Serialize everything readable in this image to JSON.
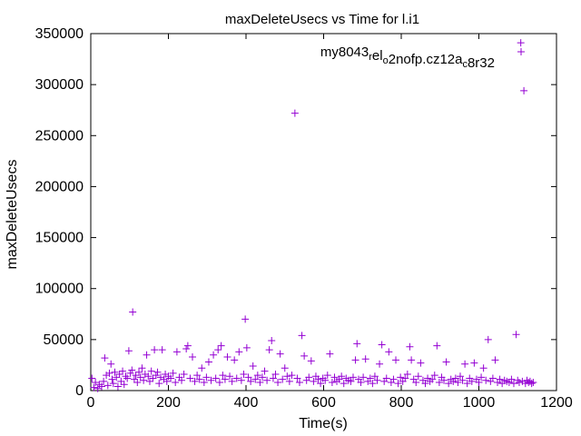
{
  "chart_data": {
    "type": "scatter",
    "title": "maxDeleteUsecs vs Time for l.i1",
    "xlabel": "Time(s)",
    "ylabel": "maxDeleteUsecs",
    "xlim": [
      0,
      1200
    ],
    "ylim": [
      0,
      350000
    ],
    "x_ticks": [
      "0",
      "200",
      "400",
      "600",
      "800",
      "1000",
      "1200"
    ],
    "y_ticks": [
      "0",
      "50000",
      "100000",
      "150000",
      "200000",
      "250000",
      "300000",
      "350000"
    ],
    "grid": false,
    "legend": "top-right",
    "marker": "+",
    "color": "#9400d3",
    "series": [
      {
        "name": "my8043_rel_o2nofp.cz12a_c8r32",
        "points": [
          [
            3,
            12000
          ],
          [
            8,
            3000
          ],
          [
            12,
            8000
          ],
          [
            18,
            2000
          ],
          [
            22,
            6000
          ],
          [
            28,
            4000
          ],
          [
            33,
            9000
          ],
          [
            36,
            32000
          ],
          [
            40,
            15000
          ],
          [
            44,
            5000
          ],
          [
            48,
            17000
          ],
          [
            52,
            26000
          ],
          [
            55,
            11000
          ],
          [
            58,
            7000
          ],
          [
            62,
            18000
          ],
          [
            66,
            13000
          ],
          [
            70,
            4000
          ],
          [
            74,
            16000
          ],
          [
            78,
            9000
          ],
          [
            82,
            19000
          ],
          [
            86,
            6000
          ],
          [
            90,
            14000
          ],
          [
            94,
            12000
          ],
          [
            98,
            39000
          ],
          [
            102,
            17000
          ],
          [
            106,
            20000
          ],
          [
            108,
            77000
          ],
          [
            112,
            11000
          ],
          [
            116,
            15000
          ],
          [
            120,
            8000
          ],
          [
            124,
            18000
          ],
          [
            128,
            13000
          ],
          [
            132,
            22000
          ],
          [
            136,
            10000
          ],
          [
            140,
            16000
          ],
          [
            144,
            35000
          ],
          [
            148,
            14000
          ],
          [
            152,
            9000
          ],
          [
            156,
            19000
          ],
          [
            160,
            12000
          ],
          [
            164,
            40000
          ],
          [
            168,
            15000
          ],
          [
            172,
            18000
          ],
          [
            176,
            7000
          ],
          [
            180,
            13000
          ],
          [
            184,
            40000
          ],
          [
            188,
            11000
          ],
          [
            192,
            16000
          ],
          [
            196,
            9000
          ],
          [
            200,
            14000
          ],
          [
            206,
            12000
          ],
          [
            212,
            17000
          ],
          [
            218,
            8000
          ],
          [
            222,
            38000
          ],
          [
            228,
            13000
          ],
          [
            234,
            10000
          ],
          [
            240,
            16000
          ],
          [
            246,
            41000
          ],
          [
            250,
            44000
          ],
          [
            256,
            12000
          ],
          [
            262,
            33000
          ],
          [
            268,
            9000
          ],
          [
            274,
            15000
          ],
          [
            280,
            11000
          ],
          [
            286,
            22000
          ],
          [
            292,
            8000
          ],
          [
            298,
            13000
          ],
          [
            304,
            28000
          ],
          [
            310,
            10000
          ],
          [
            316,
            35000
          ],
          [
            322,
            12000
          ],
          [
            328,
            40000
          ],
          [
            332,
            8000
          ],
          [
            336,
            44000
          ],
          [
            340,
            15000
          ],
          [
            346,
            11000
          ],
          [
            352,
            33000
          ],
          [
            358,
            14000
          ],
          [
            364,
            9000
          ],
          [
            370,
            30000
          ],
          [
            376,
            12000
          ],
          [
            382,
            38000
          ],
          [
            388,
            10000
          ],
          [
            394,
            16000
          ],
          [
            398,
            70000
          ],
          [
            402,
            42000
          ],
          [
            406,
            13000
          ],
          [
            412,
            9000
          ],
          [
            418,
            24000
          ],
          [
            424,
            11000
          ],
          [
            430,
            15000
          ],
          [
            436,
            8000
          ],
          [
            442,
            13000
          ],
          [
            448,
            19000
          ],
          [
            454,
            10000
          ],
          [
            460,
            40000
          ],
          [
            466,
            49000
          ],
          [
            470,
            12000
          ],
          [
            476,
            16000
          ],
          [
            482,
            8000
          ],
          [
            488,
            36000
          ],
          [
            494,
            11000
          ],
          [
            500,
            22000
          ],
          [
            506,
            14000
          ],
          [
            512,
            9000
          ],
          [
            518,
            15000
          ],
          [
            526,
            272000
          ],
          [
            532,
            12000
          ],
          [
            538,
            8000
          ],
          [
            544,
            54000
          ],
          [
            550,
            34000
          ],
          [
            556,
            10000
          ],
          [
            562,
            13000
          ],
          [
            568,
            29000
          ],
          [
            574,
            9000
          ],
          [
            580,
            14000
          ],
          [
            586,
            11000
          ],
          [
            592,
            7000
          ],
          [
            598,
            12000
          ],
          [
            604,
            10000
          ],
          [
            610,
            15000
          ],
          [
            616,
            36000
          ],
          [
            622,
            8000
          ],
          [
            628,
            13000
          ],
          [
            634,
            9000
          ],
          [
            640,
            11000
          ],
          [
            646,
            14000
          ],
          [
            652,
            7000
          ],
          [
            658,
            12000
          ],
          [
            664,
            10000
          ],
          [
            670,
            9000
          ],
          [
            676,
            13000
          ],
          [
            682,
            30000
          ],
          [
            686,
            46000
          ],
          [
            690,
            11000
          ],
          [
            696,
            8000
          ],
          [
            702,
            13000
          ],
          [
            708,
            31000
          ],
          [
            714,
            9000
          ],
          [
            720,
            12000
          ],
          [
            726,
            7000
          ],
          [
            732,
            14000
          ],
          [
            738,
            10000
          ],
          [
            744,
            26000
          ],
          [
            750,
            45000
          ],
          [
            756,
            9000
          ],
          [
            762,
            12000
          ],
          [
            768,
            38000
          ],
          [
            774,
            8000
          ],
          [
            780,
            11000
          ],
          [
            786,
            30000
          ],
          [
            792,
            7000
          ],
          [
            798,
            13000
          ],
          [
            804,
            9000
          ],
          [
            810,
            12000
          ],
          [
            816,
            16000
          ],
          [
            822,
            43000
          ],
          [
            826,
            30000
          ],
          [
            832,
            11000
          ],
          [
            838,
            8000
          ],
          [
            844,
            14000
          ],
          [
            850,
            27000
          ],
          [
            856,
            10000
          ],
          [
            862,
            7000
          ],
          [
            868,
            12000
          ],
          [
            874,
            9000
          ],
          [
            880,
            11000
          ],
          [
            886,
            15000
          ],
          [
            892,
            44000
          ],
          [
            898,
            8000
          ],
          [
            904,
            13000
          ],
          [
            910,
            10000
          ],
          [
            916,
            28000
          ],
          [
            922,
            7000
          ],
          [
            928,
            11000
          ],
          [
            934,
            9000
          ],
          [
            940,
            12000
          ],
          [
            946,
            8000
          ],
          [
            952,
            14000
          ],
          [
            958,
            10000
          ],
          [
            964,
            26000
          ],
          [
            970,
            7000
          ],
          [
            976,
            12000
          ],
          [
            982,
            9000
          ],
          [
            988,
            27000
          ],
          [
            994,
            11000
          ],
          [
            1000,
            8000
          ],
          [
            1006,
            13000
          ],
          [
            1012,
            22000
          ],
          [
            1018,
            10000
          ],
          [
            1024,
            50000
          ],
          [
            1030,
            9000
          ],
          [
            1036,
            12000
          ],
          [
            1042,
            30000
          ],
          [
            1048,
            8000
          ],
          [
            1054,
            11000
          ],
          [
            1060,
            7000
          ],
          [
            1066,
            10000
          ],
          [
            1072,
            9000
          ],
          [
            1078,
            8000
          ],
          [
            1084,
            11000
          ],
          [
            1090,
            7000
          ],
          [
            1096,
            55000
          ],
          [
            1100,
            10000
          ],
          [
            1104,
            8000
          ],
          [
            1108,
            341000
          ],
          [
            1112,
            9000
          ],
          [
            1116,
            294000
          ],
          [
            1120,
            7000
          ],
          [
            1124,
            10000
          ],
          [
            1128,
            8000
          ],
          [
            1132,
            9000
          ],
          [
            1136,
            7000
          ],
          [
            1140,
            8000
          ]
        ]
      }
    ]
  }
}
